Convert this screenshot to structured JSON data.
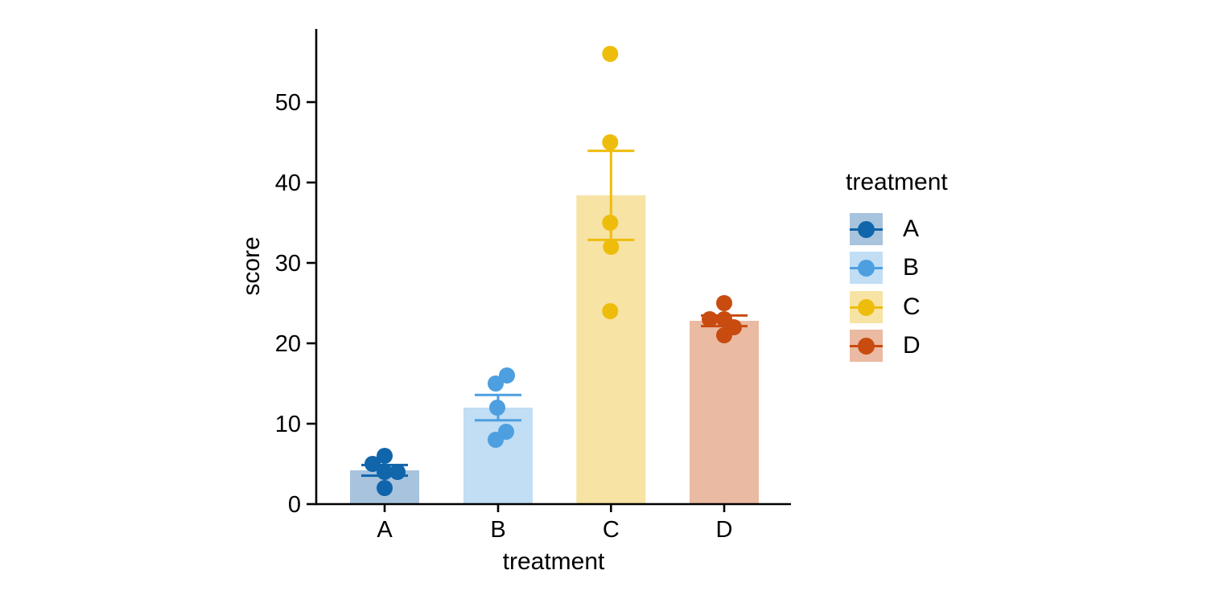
{
  "chart_data": {
    "type": "bar",
    "title": "",
    "xlabel": "treatment",
    "ylabel": "score",
    "categories": [
      "A",
      "B",
      "C",
      "D"
    ],
    "means": [
      4.2,
      12.0,
      38.4,
      22.8
    ],
    "sem": [
      0.66,
      1.58,
      5.54,
      0.66
    ],
    "error_bar_type": "mean ± SEM",
    "points": [
      [
        5,
        6,
        4,
        4,
        2
      ],
      [
        15,
        16,
        12,
        9,
        8
      ],
      [
        56,
        45,
        35,
        32,
        24
      ],
      [
        25,
        23,
        23,
        22,
        21
      ]
    ],
    "jitter_dx": [
      [
        -15,
        0,
        0,
        16,
        0
      ],
      [
        -3,
        11,
        -1,
        10,
        -3
      ],
      [
        -1,
        -1,
        -1,
        0,
        -1
      ],
      [
        0,
        -18,
        0,
        12,
        0
      ]
    ],
    "yticks": [
      0,
      10,
      20,
      30,
      40,
      50
    ],
    "ylim": [
      0,
      59
    ],
    "grid": false,
    "legend": {
      "title": "treatment",
      "position": "right",
      "entries": [
        "A",
        "B",
        "C",
        "D"
      ]
    },
    "colors": {
      "point": [
        "#1065ab",
        "#4d9fe0",
        "#eebd0c",
        "#c84b10"
      ],
      "fill": [
        "#a8c3dd",
        "#c1def5",
        "#f7e3a4",
        "#ebbaa2"
      ],
      "axis": "#000000"
    }
  }
}
